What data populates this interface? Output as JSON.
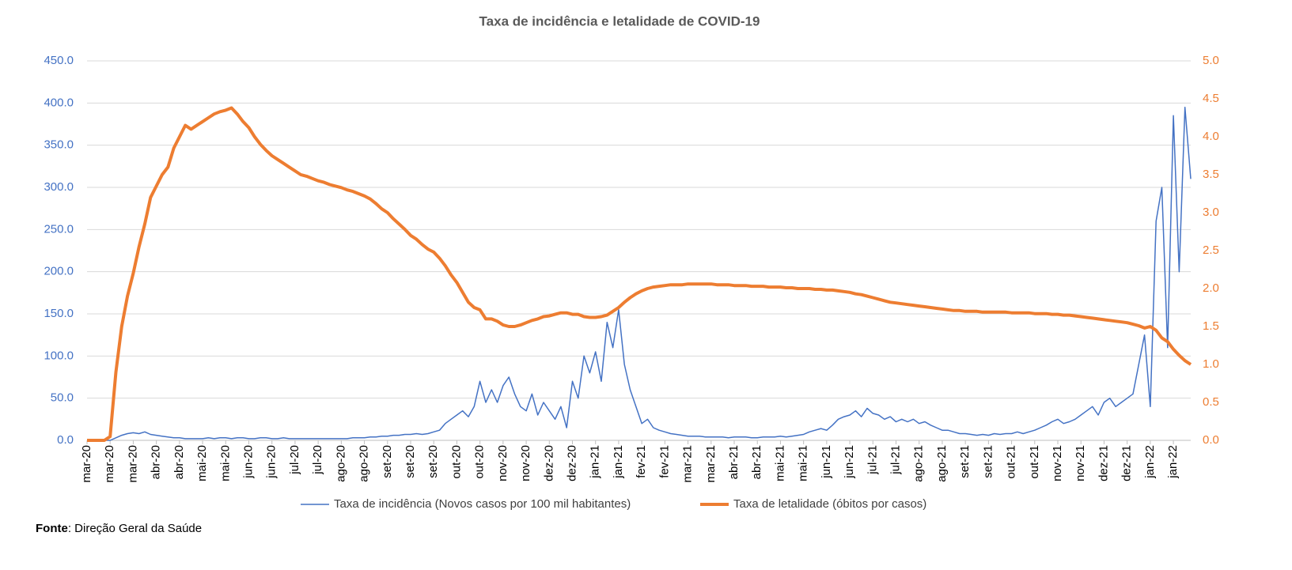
{
  "chart_data": {
    "type": "line",
    "title": "Taxa de incidência e letalidade de COVID-19",
    "categories": [
      "mar-20",
      null,
      null,
      null,
      "mar-20",
      null,
      null,
      null,
      "mar-20",
      null,
      null,
      null,
      "abr-20",
      null,
      null,
      null,
      "abr-20",
      null,
      null,
      null,
      "mai-20",
      null,
      null,
      null,
      "mai-20",
      null,
      null,
      null,
      "jun-20",
      null,
      null,
      null,
      "jun-20",
      null,
      null,
      null,
      "jul-20",
      null,
      null,
      null,
      "jul-20",
      null,
      null,
      null,
      "ago-20",
      null,
      null,
      null,
      "ago-20",
      null,
      null,
      null,
      "set-20",
      null,
      null,
      null,
      "set-20",
      null,
      null,
      null,
      "set-20",
      null,
      null,
      null,
      "out-20",
      null,
      null,
      null,
      "out-20",
      null,
      null,
      null,
      "nov-20",
      null,
      null,
      null,
      "nov-20",
      null,
      null,
      null,
      "dez-20",
      null,
      null,
      null,
      "dez-20",
      null,
      null,
      null,
      "jan-21",
      null,
      null,
      null,
      "jan-21",
      null,
      null,
      null,
      "fev-21",
      null,
      null,
      null,
      "fev-21",
      null,
      null,
      null,
      "mar-21",
      null,
      null,
      null,
      "mar-21",
      null,
      null,
      null,
      "abr-21",
      null,
      null,
      null,
      "abr-21",
      null,
      null,
      null,
      "mai-21",
      null,
      null,
      null,
      "mai-21",
      null,
      null,
      null,
      "jun-21",
      null,
      null,
      null,
      "jun-21",
      null,
      null,
      null,
      "jul-21",
      null,
      null,
      null,
      "jul-21",
      null,
      null,
      null,
      "ago-21",
      null,
      null,
      null,
      "ago-21",
      null,
      null,
      null,
      "set-21",
      null,
      null,
      null,
      "set-21",
      null,
      null,
      null,
      "out-21",
      null,
      null,
      null,
      "out-21",
      null,
      null,
      null,
      "nov-21",
      null,
      null,
      null,
      "nov-21",
      null,
      null,
      null,
      "dez-21",
      null,
      null,
      null,
      "dez-21",
      null,
      null,
      null,
      "jan-22",
      null,
      null,
      null,
      "jan-22",
      null,
      null,
      null
    ],
    "series": [
      {
        "name": "Taxa de incidência (Novos casos por 100 mil habitantes)",
        "color": "#4472c4",
        "axis": "y",
        "values": [
          0,
          0,
          0,
          0,
          0,
          3,
          6,
          8,
          9,
          8,
          10,
          7,
          6,
          5,
          4,
          3,
          3,
          2,
          2,
          2,
          2,
          3,
          2,
          3,
          3,
          2,
          3,
          3,
          2,
          2,
          3,
          3,
          2,
          2,
          3,
          2,
          2,
          2,
          2,
          2,
          2,
          2,
          2,
          2,
          2,
          2,
          3,
          3,
          3,
          4,
          4,
          5,
          5,
          6,
          6,
          7,
          7,
          8,
          7,
          8,
          10,
          12,
          20,
          25,
          30,
          35,
          28,
          40,
          70,
          45,
          60,
          45,
          65,
          75,
          55,
          40,
          35,
          55,
          30,
          45,
          35,
          25,
          40,
          15,
          70,
          50,
          100,
          80,
          105,
          70,
          140,
          110,
          155,
          90,
          60,
          40,
          20,
          25,
          15,
          12,
          10,
          8,
          7,
          6,
          5,
          5,
          5,
          4,
          4,
          4,
          4,
          3,
          4,
          4,
          4,
          3,
          3,
          4,
          4,
          4,
          5,
          4,
          5,
          6,
          7,
          10,
          12,
          14,
          12,
          18,
          25,
          28,
          30,
          35,
          28,
          38,
          32,
          30,
          25,
          28,
          22,
          25,
          22,
          25,
          20,
          22,
          18,
          15,
          12,
          12,
          10,
          8,
          8,
          7,
          6,
          7,
          6,
          8,
          7,
          8,
          8,
          10,
          8,
          10,
          12,
          15,
          18,
          22,
          25,
          20,
          22,
          25,
          30,
          35,
          40,
          30,
          45,
          50,
          40,
          45,
          50,
          55,
          90,
          125,
          40,
          260,
          300,
          110,
          385,
          200,
          395,
          310
        ]
      },
      {
        "name": "Taxa de letalidade (óbitos por casos)",
        "color": "#ed7d31",
        "axis": "y2",
        "values": [
          0,
          0,
          0,
          0,
          0.05,
          0.9,
          1.5,
          1.9,
          2.2,
          2.55,
          2.85,
          3.2,
          3.35,
          3.5,
          3.6,
          3.85,
          4.0,
          4.15,
          4.1,
          4.15,
          4.2,
          4.25,
          4.3,
          4.33,
          4.35,
          4.38,
          4.3,
          4.2,
          4.12,
          4.0,
          3.9,
          3.82,
          3.75,
          3.7,
          3.65,
          3.6,
          3.55,
          3.5,
          3.48,
          3.45,
          3.42,
          3.4,
          3.37,
          3.35,
          3.33,
          3.3,
          3.28,
          3.25,
          3.22,
          3.18,
          3.12,
          3.05,
          3.0,
          2.92,
          2.85,
          2.78,
          2.7,
          2.65,
          2.58,
          2.52,
          2.48,
          2.4,
          2.3,
          2.18,
          2.08,
          1.95,
          1.82,
          1.75,
          1.72,
          1.6,
          1.6,
          1.57,
          1.52,
          1.5,
          1.5,
          1.52,
          1.55,
          1.58,
          1.6,
          1.63,
          1.64,
          1.66,
          1.68,
          1.68,
          1.66,
          1.66,
          1.63,
          1.62,
          1.62,
          1.63,
          1.65,
          1.7,
          1.75,
          1.82,
          1.88,
          1.93,
          1.97,
          2.0,
          2.02,
          2.03,
          2.04,
          2.05,
          2.05,
          2.05,
          2.06,
          2.06,
          2.06,
          2.06,
          2.06,
          2.05,
          2.05,
          2.05,
          2.04,
          2.04,
          2.04,
          2.03,
          2.03,
          2.03,
          2.02,
          2.02,
          2.02,
          2.01,
          2.01,
          2.0,
          2.0,
          2.0,
          1.99,
          1.99,
          1.98,
          1.98,
          1.97,
          1.96,
          1.95,
          1.93,
          1.92,
          1.9,
          1.88,
          1.86,
          1.84,
          1.82,
          1.81,
          1.8,
          1.79,
          1.78,
          1.77,
          1.76,
          1.75,
          1.74,
          1.73,
          1.72,
          1.71,
          1.71,
          1.7,
          1.7,
          1.7,
          1.69,
          1.69,
          1.69,
          1.69,
          1.69,
          1.68,
          1.68,
          1.68,
          1.68,
          1.67,
          1.67,
          1.67,
          1.66,
          1.66,
          1.65,
          1.65,
          1.64,
          1.63,
          1.62,
          1.61,
          1.6,
          1.59,
          1.58,
          1.57,
          1.56,
          1.55,
          1.53,
          1.51,
          1.48,
          1.5,
          1.45,
          1.35,
          1.3,
          1.2,
          1.12,
          1.05,
          1.0
        ]
      }
    ],
    "ylim": [
      0,
      450
    ],
    "yticks": [
      {
        "value": 0,
        "label": "0.0"
      },
      {
        "value": 50,
        "label": "50.0"
      },
      {
        "value": 100,
        "label": "100.0"
      },
      {
        "value": 150,
        "label": "150.0"
      },
      {
        "value": 200,
        "label": "200.0"
      },
      {
        "value": 250,
        "label": "250.0"
      },
      {
        "value": 300,
        "label": "300.0"
      },
      {
        "value": 350,
        "label": "350.0"
      },
      {
        "value": 400,
        "label": "400.0"
      },
      {
        "value": 450,
        "label": "450.0"
      }
    ],
    "y2lim": [
      0,
      5
    ],
    "y2ticks": [
      {
        "value": 0,
        "label": "0.0"
      },
      {
        "value": 0.5,
        "label": "0.5"
      },
      {
        "value": 1,
        "label": "1.0"
      },
      {
        "value": 1.5,
        "label": "1.5"
      },
      {
        "value": 2,
        "label": "2.0"
      },
      {
        "value": 2.5,
        "label": "2.5"
      },
      {
        "value": 3,
        "label": "3.0"
      },
      {
        "value": 3.5,
        "label": "3.5"
      },
      {
        "value": 4,
        "label": "4.0"
      },
      {
        "value": 4.5,
        "label": "4.5"
      },
      {
        "value": 5,
        "label": "5.0"
      }
    ],
    "grid": true,
    "legend": "bottom"
  },
  "source_label": "Fonte",
  "source_text": ": Direção Geral da Saúde"
}
